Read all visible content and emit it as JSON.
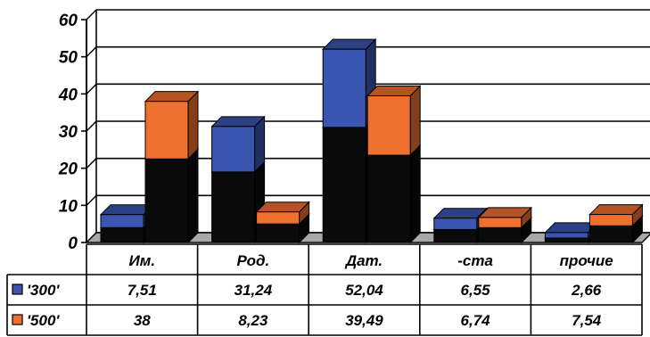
{
  "chart_data": {
    "type": "bar",
    "stacked_3d": true,
    "categories": [
      "Им.",
      "Род.",
      "Дат.",
      "-ста",
      "прочие"
    ],
    "yticks": [
      "0",
      "10",
      "20",
      "30",
      "40",
      "50",
      "60"
    ],
    "ylim": [
      0,
      60
    ],
    "grid": true,
    "series": [
      {
        "name": "'300'",
        "color": "#3a56b0",
        "values": [
          7.51,
          31.24,
          52.04,
          6.55,
          2.66
        ],
        "value_labels": [
          "7,51",
          "31,24",
          "52,04",
          "6,55",
          "2,66"
        ],
        "dark_segment": [
          4,
          19,
          31,
          3.5,
          1.2
        ]
      },
      {
        "name": "'500'",
        "color": "#f07030",
        "values": [
          38,
          8.23,
          39.49,
          6.74,
          7.54
        ],
        "value_labels": [
          "38",
          "8,23",
          "39,49",
          "6,74",
          "7,54"
        ],
        "dark_segment": [
          22.5,
          5,
          23.5,
          4,
          4.5
        ]
      }
    ],
    "dark_color": "#0a0a0a",
    "legend_position": "data-table"
  }
}
